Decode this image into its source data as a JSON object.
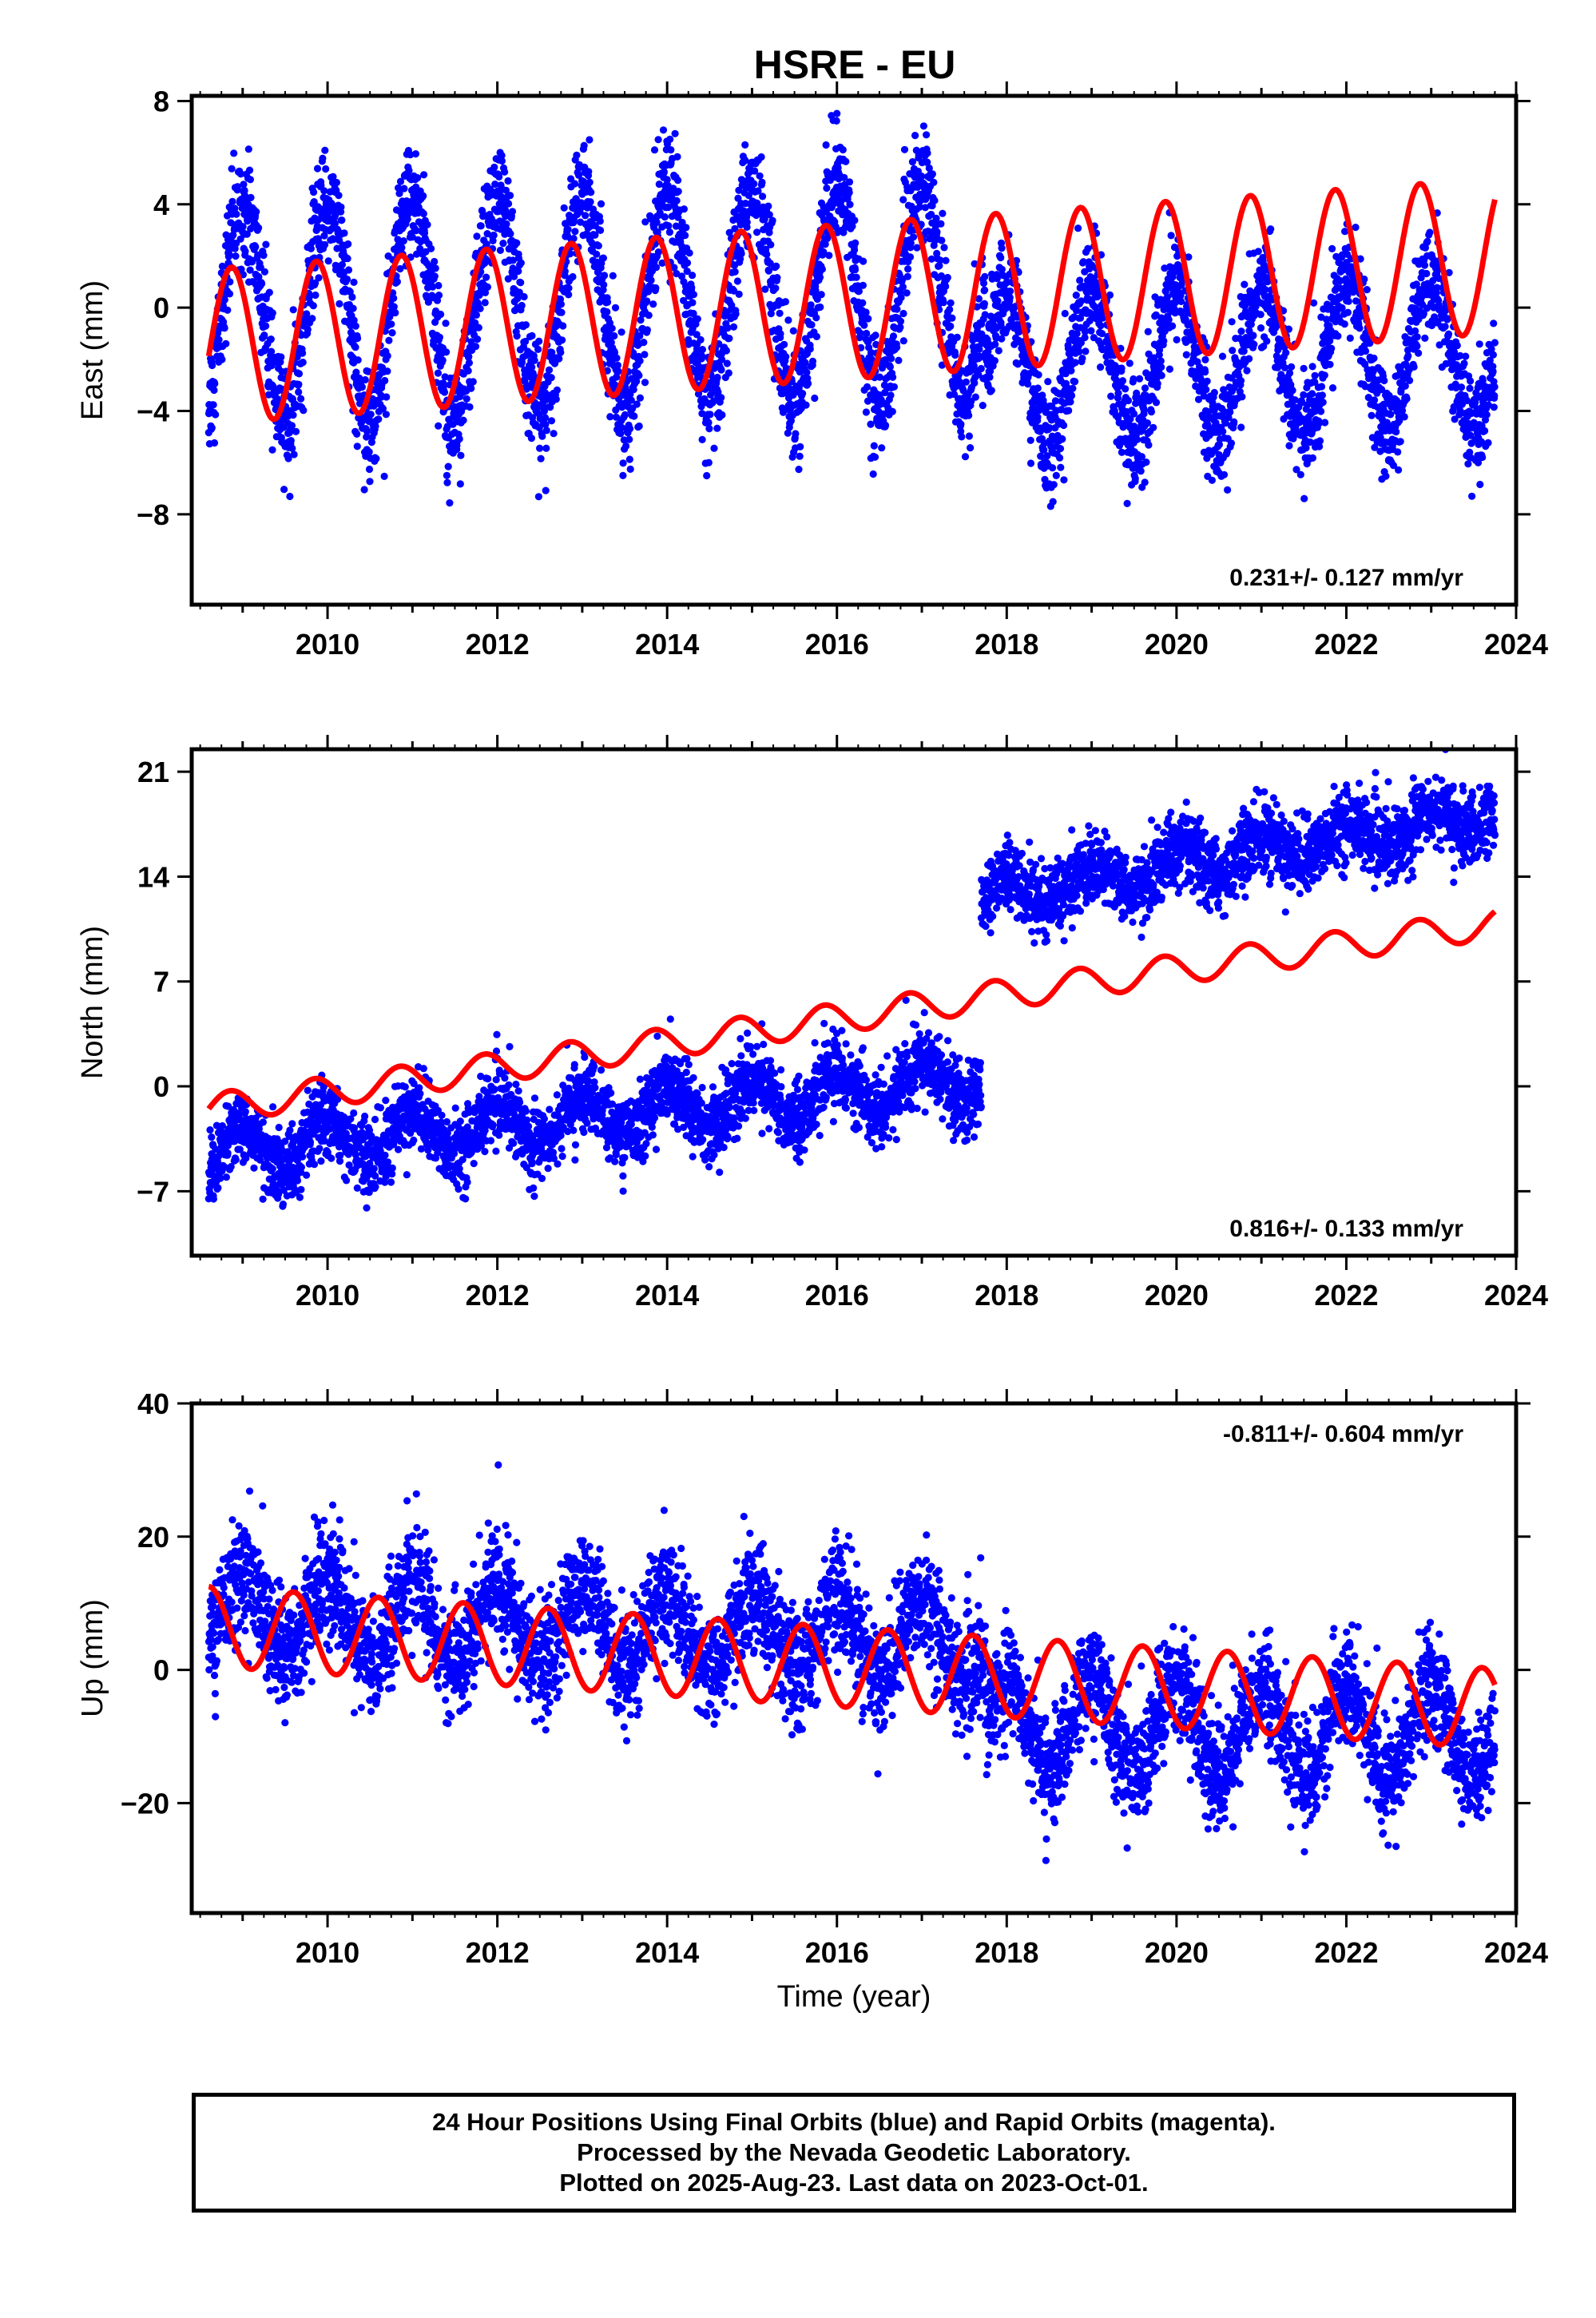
{
  "chart_data": {
    "title": "HSRE - EU",
    "type": "scatter",
    "xlabel": "Time (year)",
    "xlim": [
      2008.4,
      2024.0
    ],
    "xticks": [
      2010,
      2012,
      2014,
      2016,
      2018,
      2020,
      2022,
      2024
    ],
    "xtick_labels": [
      "2010",
      "2012",
      "2014",
      "2016",
      "2018",
      "2020",
      "2022",
      "2024"
    ],
    "colors": {
      "points": "#0000ff",
      "model": "#ff0000",
      "frame": "#000000"
    },
    "grid": false,
    "panels": [
      {
        "ylabel": "East (mm)",
        "ylim": [
          -11.5,
          8.2
        ],
        "yticks": [
          -8,
          -4,
          0,
          4,
          8
        ],
        "ytick_labels": [
          "−8",
          "−4",
          "0",
          "4",
          "8"
        ],
        "rate_text": "0.231+/- 0.127 mm/yr",
        "rate_position": "bottom-right",
        "observations": [
          {
            "t_start": 2008.6,
            "t_end": 2017.75,
            "offset": -0.3,
            "amplitude": 4.2,
            "trend": 0.12,
            "scatter": 1.1
          },
          {
            "t_start": 2017.75,
            "t_end": 2023.75,
            "offset": -2.4,
            "amplitude": 2.9,
            "trend": 0.12,
            "scatter": 1.0
          }
        ],
        "model": {
          "t_start": 2008.6,
          "t_end": 2023.75,
          "offset": -1.5,
          "amplitude": 3.0,
          "trend": 0.231,
          "phase": 0.62
        }
      },
      {
        "ylabel": "North (mm)",
        "ylim": [
          -11.3,
          22.5
        ],
        "yticks": [
          -7,
          0,
          7,
          14,
          21
        ],
        "ytick_labels": [
          "−7",
          "0",
          "7",
          "14",
          "21"
        ],
        "rate_text": "0.816+/- 0.133 mm/yr",
        "rate_position": "bottom-right",
        "observations": [
          {
            "t_start": 2008.6,
            "t_end": 2017.7,
            "offset": -4.5,
            "amplitude": 1.5,
            "trend": 0.55,
            "scatter": 1.2
          },
          {
            "t_start": 2017.7,
            "t_end": 2023.75,
            "offset": 12.5,
            "amplitude": 1.0,
            "trend": 0.95,
            "scatter": 1.2
          }
        ],
        "model": {
          "t_start": 2008.6,
          "t_end": 2023.75,
          "offset": -1.5,
          "amplitude": 1.0,
          "trend": 0.816,
          "phase": 0.6
        }
      },
      {
        "ylabel": "Up (mm)",
        "ylim": [
          -36.5,
          40
        ],
        "yticks": [
          -20,
          0,
          20,
          40
        ],
        "ytick_labels": [
          "−20",
          "0",
          "20",
          "40"
        ],
        "rate_text": "-0.811+/- 0.604 mm/yr",
        "rate_position": "top-right",
        "observations": [
          {
            "t_start": 2008.6,
            "t_end": 2017.75,
            "offset": 8.5,
            "amplitude": 6.0,
            "trend": -0.5,
            "scatter": 4.2
          },
          {
            "t_start": 2017.75,
            "t_end": 2023.75,
            "offset": -8.0,
            "amplitude": 7.0,
            "trend": -0.3,
            "scatter": 4.0
          }
        ],
        "model": {
          "t_start": 2008.6,
          "t_end": 2023.75,
          "offset": 6.5,
          "amplitude": 6.0,
          "trend": -0.811,
          "phase": 0.35
        }
      }
    ],
    "footer": [
      "24 Hour Positions Using Final Orbits (blue) and Rapid Orbits (magenta).",
      "Processed by the Nevada Geodetic Laboratory.",
      "Plotted on 2025-Aug-23. Last data on 2023-Oct-01."
    ]
  }
}
